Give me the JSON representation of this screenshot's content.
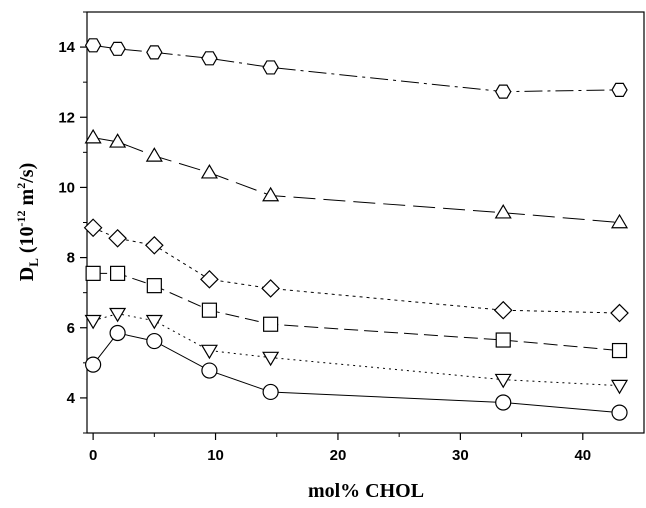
{
  "chart_data": {
    "type": "line",
    "xlabel": "mol% CHOL",
    "ylabel": {
      "main": "D",
      "sub": "L",
      "unit_open": " (10",
      "unit_exp": "-12",
      "unit_mid": " m",
      "unit_exp2": "2",
      "unit_close": "/s)"
    },
    "xlim": [
      -0.5,
      45
    ],
    "ylim": [
      3,
      15
    ],
    "xticks": [
      0,
      10,
      20,
      30,
      40
    ],
    "yticks": [
      4,
      6,
      8,
      10,
      12,
      14
    ],
    "minor_ticks_x": [
      5,
      15,
      25,
      35
    ],
    "minor_ticks_y": [
      3,
      5,
      7,
      9,
      11,
      13,
      15
    ],
    "grid": false,
    "legend": "none",
    "colors": {
      "line": "#000000",
      "marker_fill": "#ffffff"
    },
    "series": [
      {
        "marker": "hexagon",
        "dash": "dashdot",
        "x": [
          0,
          2,
          5,
          9.5,
          14.5,
          33.5,
          43
        ],
        "y": [
          14.05,
          13.95,
          13.85,
          13.68,
          13.42,
          12.73,
          12.78
        ]
      },
      {
        "marker": "triangle-up",
        "dash": "longdash",
        "x": [
          0,
          2,
          5,
          9.5,
          14.5,
          33.5,
          43
        ],
        "y": [
          11.42,
          11.3,
          10.9,
          10.42,
          9.77,
          9.28,
          9.0
        ]
      },
      {
        "marker": "diamond",
        "dash": "mixed",
        "x": [
          0,
          2,
          5,
          9.5,
          14.5,
          33.5,
          43
        ],
        "y": [
          8.85,
          8.55,
          8.35,
          7.38,
          7.12,
          6.5,
          6.42
        ]
      },
      {
        "marker": "square",
        "dash": "dashed",
        "x": [
          0,
          2,
          5,
          9.5,
          14.5,
          33.5,
          43
        ],
        "y": [
          7.55,
          7.55,
          7.2,
          6.5,
          6.1,
          5.65,
          5.35
        ]
      },
      {
        "marker": "triangle-down",
        "dash": "dotted",
        "x": [
          0,
          2,
          5,
          9.5,
          14.5,
          33.5,
          43
        ],
        "y": [
          6.2,
          6.4,
          6.2,
          5.35,
          5.15,
          4.52,
          4.35
        ]
      },
      {
        "marker": "circle",
        "dash": "solid",
        "x": [
          0,
          2,
          5,
          9.5,
          14.5,
          33.5,
          43
        ],
        "y": [
          4.95,
          5.85,
          5.62,
          4.78,
          4.17,
          3.87,
          3.58
        ]
      }
    ]
  }
}
